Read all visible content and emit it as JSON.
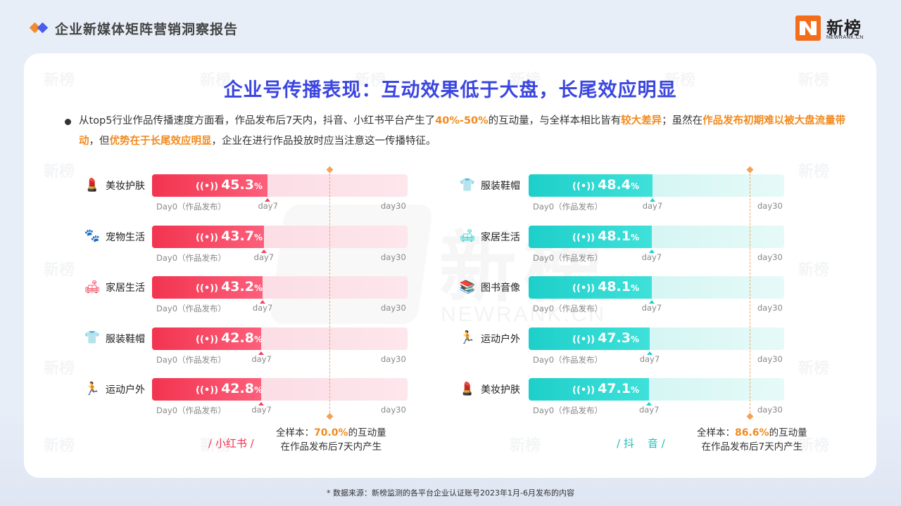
{
  "header": {
    "title": "企业新媒体矩阵营销洞察报告",
    "logo_text": "新榜",
    "logo_sub": "NEWRANK.CN"
  },
  "watermark": {
    "text": "新榜",
    "sub": "NEWRANK.CN"
  },
  "main": {
    "title": "企业号传播表现：互动效果低于大盘，长尾效应明显",
    "desc": {
      "p1": "从top5行业作品传播速度方面看，作品发布后7天内，抖音、小红书平台产生了",
      "h1": "40%-50%",
      "p2": "的互动量，与全样本相比皆有",
      "h2": "较大差异",
      "p3": "；虽然在",
      "h3": "作品发布初期难以被大盘流量带动",
      "p4": "，但",
      "h4": "优势在于长尾效应明显",
      "p5": "，企业在进行作品投放时应当注意这一传播特征。"
    }
  },
  "axis": {
    "day0": "Day0（作品发布）",
    "day7": "day7",
    "day30": "day30"
  },
  "left": {
    "platform": "/ 小红书 /",
    "note_prefix": "全样本：",
    "note_value": "70.0%",
    "note_suffix": "的互动量",
    "note_line2": "在作品发布后7天内产生",
    "color": "#f2344f"
  },
  "right": {
    "platform": "/ 抖    音 /",
    "note_prefix": "全样本：",
    "note_value": "86.6%",
    "note_suffix": "的互动量",
    "note_line2": "在作品发布后7天内产生",
    "color": "#1fcfc8"
  },
  "chart_data": [
    {
      "type": "bar",
      "platform": "小红书",
      "categories": [
        "美妆护肤",
        "宠物生活",
        "家居生活",
        "服装鞋帽",
        "运动户外"
      ],
      "values": [
        45.3,
        43.7,
        43.2,
        42.8,
        42.8
      ],
      "value_labels": [
        "45.3",
        "43.7",
        "43.2",
        "42.8",
        "42.8"
      ],
      "icons": [
        "lipstick-icon",
        "paw-icon",
        "sofa-icon",
        "clothing-icon",
        "sports-icon"
      ],
      "benchmark": 70.0,
      "unit": "%",
      "xlim": [
        0,
        100
      ]
    },
    {
      "type": "bar",
      "platform": "抖音",
      "categories": [
        "服装鞋帽",
        "家居生活",
        "图书音像",
        "运动户外",
        "美妆护肤"
      ],
      "values": [
        48.4,
        48.1,
        48.1,
        47.3,
        47.1
      ],
      "value_labels": [
        "48.4",
        "48.1",
        "48.1",
        "47.3",
        "47.1"
      ],
      "icons": [
        "clothing-icon",
        "sofa-icon",
        "books-icon",
        "sports-icon",
        "lipstick-icon"
      ],
      "benchmark": 86.6,
      "unit": "%",
      "xlim": [
        0,
        100
      ]
    }
  ],
  "footer": {
    "source": "* 数据来源：新榜监测的各平台企业认证账号2023年1月-6月发布的内容"
  }
}
